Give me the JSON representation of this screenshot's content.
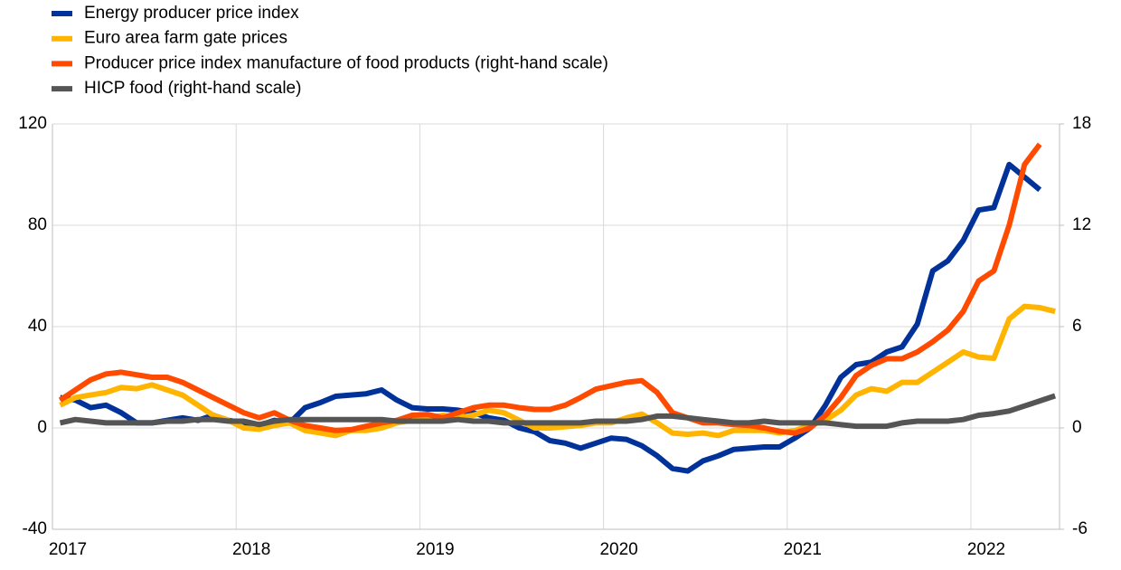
{
  "chart_data": {
    "type": "line",
    "categories": [
      "2017",
      null,
      null,
      null,
      null,
      null,
      null,
      null,
      null,
      null,
      null,
      null,
      "2018",
      null,
      null,
      null,
      null,
      null,
      null,
      null,
      null,
      null,
      null,
      null,
      "2019",
      null,
      null,
      null,
      null,
      null,
      null,
      null,
      null,
      null,
      null,
      null,
      "2020",
      null,
      null,
      null,
      null,
      null,
      null,
      null,
      null,
      null,
      null,
      null,
      "2021",
      null,
      null,
      null,
      null,
      null,
      null,
      null,
      null,
      null,
      null,
      null,
      "2022",
      null,
      null,
      null,
      null,
      null
    ],
    "series": [
      {
        "name": "Energy producer price index",
        "color": "#003299",
        "axis": "y",
        "values": [
          12,
          11,
          8,
          9,
          6,
          2,
          2,
          3,
          4,
          3,
          5,
          3,
          2,
          1,
          3,
          2,
          8,
          10,
          12.5,
          13,
          13.5,
          15,
          11,
          8,
          7.5,
          7.5,
          7,
          6,
          4,
          3,
          0,
          -1.5,
          -5,
          -6,
          -8,
          -6,
          -4,
          -4.5,
          -7,
          -11,
          -16,
          -17,
          -13,
          -11,
          -8.5,
          -8,
          -7.5,
          -7.5,
          -4,
          0,
          9,
          20,
          25,
          26,
          30,
          32,
          41,
          62,
          66,
          74,
          86,
          87,
          104,
          99,
          94,
          null
        ]
      },
      {
        "name": "Euro area farm gate prices",
        "color": "#ffb400",
        "axis": "y",
        "values": [
          9,
          12,
          13,
          14,
          16,
          15.5,
          17,
          15,
          13,
          9,
          5,
          3,
          0,
          -0.5,
          1,
          2,
          -1,
          -2,
          -3,
          -1,
          -1,
          0,
          2,
          3,
          4,
          5,
          4,
          5,
          7,
          6,
          3,
          0,
          0,
          0.5,
          1,
          2,
          2,
          4,
          5.5,
          2,
          -2,
          -2.5,
          -2,
          -3,
          -1,
          -1,
          -1,
          -2,
          -1,
          1,
          3,
          7,
          13,
          15.5,
          14.5,
          18,
          18,
          22,
          26,
          30,
          28,
          27.5,
          43,
          48,
          47.5,
          46
        ]
      },
      {
        "name": "Producer price index manufacture of food products (right-hand scale)",
        "color": "#ff4b00",
        "axis": "y2",
        "values": [
          1.65,
          2.25,
          2.85,
          3.2,
          3.3,
          3.15,
          3.0,
          3.0,
          2.7,
          2.25,
          1.8,
          1.35,
          0.9,
          0.6,
          0.9,
          0.45,
          0.15,
          0,
          -0.15,
          -0.1,
          0.1,
          0.3,
          0.45,
          0.75,
          0.8,
          0.6,
          0.9,
          1.2,
          1.35,
          1.35,
          1.2,
          1.1,
          1.1,
          1.35,
          1.8,
          2.3,
          2.5,
          2.7,
          2.8,
          2.1,
          0.9,
          0.6,
          0.3,
          0.3,
          0.2,
          0.15,
          0,
          -0.2,
          -0.3,
          0,
          0.75,
          1.8,
          3.1,
          3.7,
          4.1,
          4.1,
          4.5,
          5.1,
          5.8,
          6.9,
          8.7,
          9.3,
          12.0,
          15.6,
          16.8,
          null
        ]
      },
      {
        "name": "HICP food (right-hand scale)",
        "color": "#555555",
        "axis": "y2",
        "values": [
          0.3,
          0.5,
          0.4,
          0.3,
          0.3,
          0.3,
          0.3,
          0.4,
          0.4,
          0.5,
          0.5,
          0.4,
          0.4,
          0.2,
          0.4,
          0.5,
          0.5,
          0.5,
          0.5,
          0.5,
          0.5,
          0.5,
          0.4,
          0.4,
          0.4,
          0.4,
          0.5,
          0.4,
          0.4,
          0.3,
          0.3,
          0.3,
          0.3,
          0.3,
          0.3,
          0.4,
          0.4,
          0.4,
          0.5,
          0.7,
          0.7,
          0.6,
          0.5,
          0.4,
          0.3,
          0.3,
          0.4,
          0.3,
          0.3,
          0.3,
          0.3,
          0.2,
          0.1,
          0.1,
          0.1,
          0.3,
          0.4,
          0.4,
          0.4,
          0.5,
          0.75,
          0.85,
          1.0,
          1.3,
          1.6,
          1.9
        ]
      }
    ],
    "ylim": [
      -40,
      120
    ],
    "yticks": [
      -40,
      0,
      40,
      80,
      120
    ],
    "y2lim": [
      -6,
      18
    ],
    "y2ticks": [
      -6,
      0,
      6,
      12,
      18
    ],
    "grid": true,
    "legend": "top-left"
  }
}
